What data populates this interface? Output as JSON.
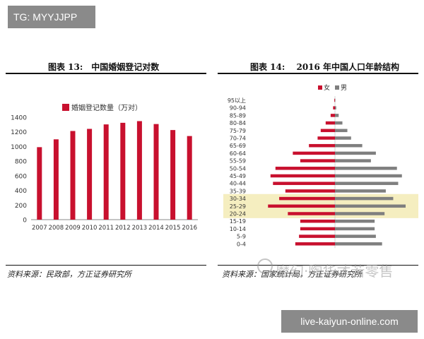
{
  "badges": {
    "tg": "TG: MYYJJPP",
    "url": "live-kaiyun-online.com"
  },
  "watermark": "魔幻·陶华才若零售",
  "left_panel": {
    "title": "图表 13:　中国婚姻登记对数",
    "source": "资料来源：民政部，方正证券研究所"
  },
  "right_panel": {
    "title": "图表 14:　 2016 年中国人口年龄结构",
    "source": "资料来源：国家统计局，方正证券研究所"
  },
  "colors": {
    "female": "#c8102e",
    "male": "#7f7f7f",
    "highlight": "#f5eec0"
  },
  "chart_data": [
    {
      "type": "bar",
      "title": "图表 13:　中国婚姻登记对数",
      "legend": "婚姻登记数量（万对）",
      "legend_position": "top-left",
      "categories": [
        "2007",
        "2008",
        "2009",
        "2010",
        "2011",
        "2012",
        "2013",
        "2014",
        "2015",
        "2016"
      ],
      "values": [
        991,
        1098,
        1212,
        1241,
        1302,
        1324,
        1347,
        1307,
        1225,
        1143
      ],
      "ylim": [
        0,
        1400
      ],
      "yticks": [
        "0",
        "200",
        "400",
        "600",
        "800",
        "1000",
        "1200",
        "1400"
      ],
      "grid": false
    },
    {
      "type": "bar",
      "orientation": "horizontal",
      "title": "图表 14:　 2016 年中国人口年龄结构",
      "legend_position": "top",
      "categories": [
        "95以上",
        "90-94",
        "85-89",
        "80-84",
        "75-79",
        "70-74",
        "65-69",
        "60-64",
        "55-59",
        "50-54",
        "45-49",
        "40-44",
        "35-39",
        "30-34",
        "25-29",
        "20-24",
        "15-19",
        "10-14",
        "5-9",
        "0-4"
      ],
      "series": [
        {
          "name": "女",
          "values": [
            0.5,
            1.5,
            3.5,
            7.5,
            11.5,
            14,
            21,
            34,
            28,
            48,
            52,
            50,
            40,
            45,
            54,
            38,
            28,
            28,
            29,
            32
          ]
        },
        {
          "name": "男",
          "values": [
            0.3,
            1.0,
            3.0,
            6.0,
            10.0,
            13,
            22,
            33,
            29,
            50,
            54,
            51,
            41,
            47,
            57,
            40,
            32,
            32,
            33,
            38
          ]
        }
      ],
      "highlighted_categories": [
        "30-34",
        "25-29",
        "20-24"
      ],
      "grid": false
    }
  ]
}
